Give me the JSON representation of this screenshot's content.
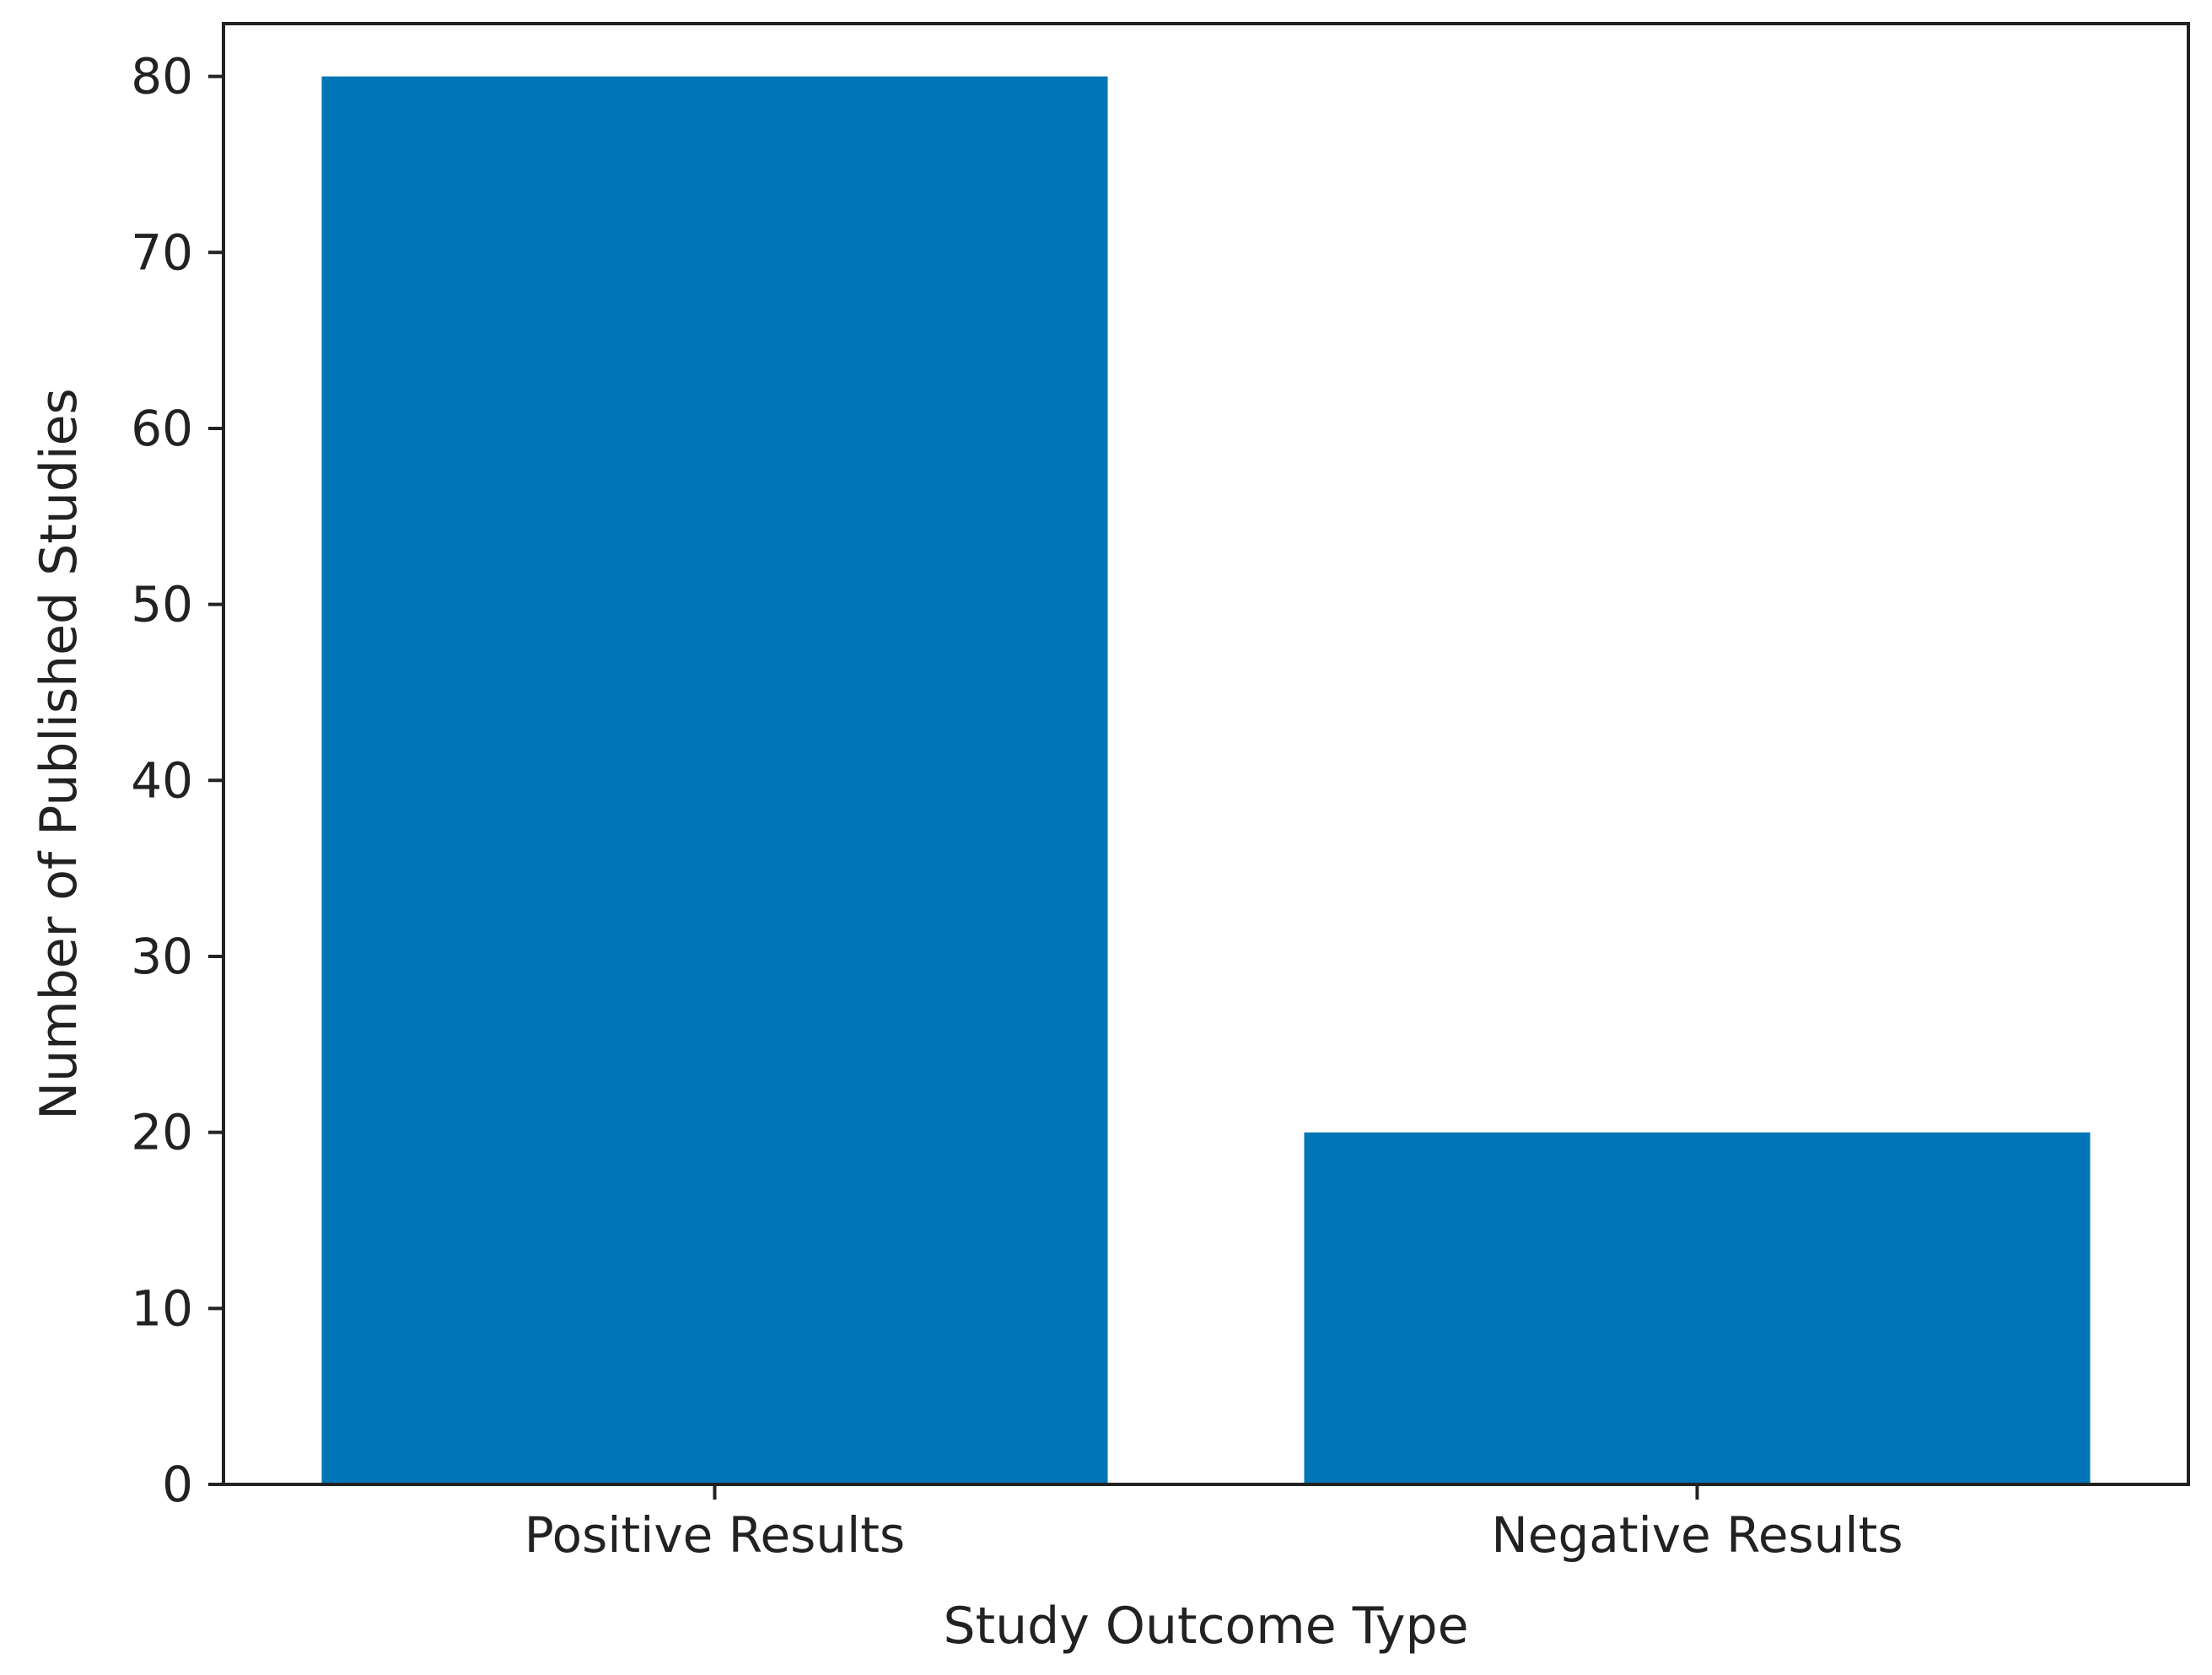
{
  "chart_data": {
    "type": "bar",
    "title": "",
    "xlabel": "Study Outcome Type",
    "ylabel": "Number of Published Studies",
    "categories": [
      "Positive Results",
      "Negative Results"
    ],
    "values": [
      80,
      20
    ],
    "ylim": [
      0,
      83
    ],
    "yticks": [
      0,
      10,
      20,
      30,
      40,
      50,
      60,
      70,
      80
    ],
    "grid": false,
    "legend": "none",
    "bar_color": "#0075b6",
    "axis_color": "#222222"
  }
}
